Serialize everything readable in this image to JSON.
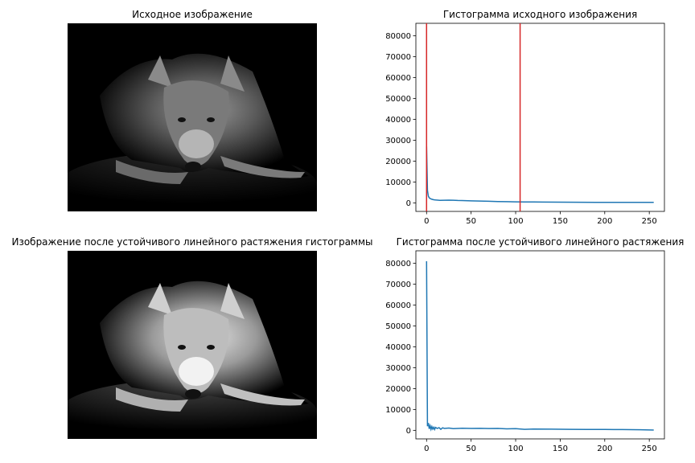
{
  "panels": {
    "original_image": {
      "title": "Исходное изображение"
    },
    "stretched_image": {
      "title": "Изображение после устойчивого линейного растяжения гистограммы"
    }
  },
  "chart_data": [
    {
      "type": "line",
      "title": "Гистограмма исходного изображения",
      "xlabel": "",
      "ylabel": "",
      "xlim": [
        -12,
        267
      ],
      "ylim": [
        -4100,
        86000
      ],
      "xticks": [
        0,
        50,
        100,
        150,
        200,
        250
      ],
      "yticks": [
        0,
        10000,
        20000,
        30000,
        40000,
        50000,
        60000,
        70000,
        80000
      ],
      "grid": false,
      "series": [
        {
          "color": "#1f77b4",
          "x": [
            0,
            1,
            2,
            3,
            4,
            5,
            6,
            8,
            10,
            15,
            20,
            25,
            30,
            35,
            40,
            50,
            60,
            70,
            80,
            90,
            100,
            110,
            120,
            130,
            150,
            170,
            190,
            210,
            230,
            250,
            255
          ],
          "y": [
            27000,
            6000,
            3200,
            2400,
            2100,
            1900,
            1700,
            1500,
            1350,
            1200,
            1250,
            1300,
            1250,
            1150,
            1100,
            950,
            850,
            750,
            650,
            560,
            480,
            430,
            390,
            360,
            320,
            290,
            270,
            250,
            230,
            210,
            200
          ]
        }
      ],
      "vlines": [
        {
          "x": 0,
          "color": "#d62728"
        },
        {
          "x": 105,
          "color": "#d62728"
        }
      ]
    },
    {
      "type": "line",
      "title": "Гистограмма после устойчивого линейного растяжения",
      "xlabel": "",
      "ylabel": "",
      "xlim": [
        -12,
        267
      ],
      "ylim": [
        -4100,
        86000
      ],
      "xticks": [
        0,
        50,
        100,
        150,
        200,
        250
      ],
      "yticks": [
        0,
        10000,
        20000,
        30000,
        40000,
        50000,
        60000,
        70000,
        80000
      ],
      "grid": false,
      "series": [
        {
          "color": "#1f77b4",
          "x": [
            0,
            1,
            2,
            3,
            4,
            5,
            6,
            7,
            8,
            9,
            10,
            12,
            14,
            16,
            18,
            20,
            25,
            30,
            40,
            50,
            60,
            70,
            80,
            90,
            100,
            110,
            120,
            140,
            160,
            180,
            200,
            220,
            240,
            255
          ],
          "y": [
            81000,
            2000,
            3500,
            700,
            2200,
            500,
            1800,
            600,
            1500,
            400,
            1400,
            900,
            1300,
            500,
            1200,
            900,
            1100,
            800,
            1000,
            900,
            950,
            850,
            900,
            700,
            800,
            500,
            600,
            550,
            500,
            450,
            400,
            350,
            300,
            150
          ]
        }
      ],
      "vlines": []
    }
  ]
}
